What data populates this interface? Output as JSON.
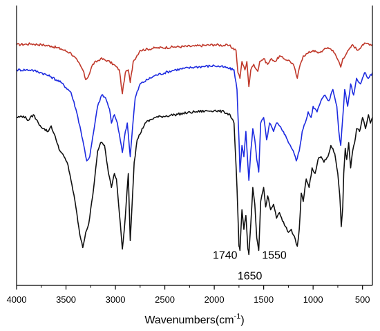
{
  "chart_data": {
    "type": "line",
    "title": "",
    "xlabel_main": "Wavenumbers(cm",
    "xlabel_sup": "-1",
    "xlabel_close": ")",
    "ylabel": "",
    "xlim": [
      4000,
      400
    ],
    "ylim": [
      0,
      100
    ],
    "x_ticks": [
      4000,
      3500,
      3000,
      2500,
      2000,
      1500,
      1000,
      500
    ],
    "x_tick_labels": [
      "4000",
      "3500",
      "3000",
      "2500",
      "2000",
      "1500",
      "1000",
      "500"
    ],
    "y_axis_visible": false,
    "grid": false,
    "legend": "none",
    "series": [
      {
        "color": "#c0392b",
        "points": [
          [
            4000,
            86
          ],
          [
            3850,
            86.3
          ],
          [
            3750,
            86
          ],
          [
            3650,
            85.5
          ],
          [
            3550,
            84.5
          ],
          [
            3450,
            83
          ],
          [
            3380,
            80
          ],
          [
            3330,
            77
          ],
          [
            3300,
            73.5
          ],
          [
            3270,
            75
          ],
          [
            3230,
            79
          ],
          [
            3150,
            81
          ],
          [
            3080,
            80.3
          ],
          [
            3020,
            79
          ],
          [
            2960,
            77
          ],
          [
            2930,
            68.5
          ],
          [
            2900,
            76
          ],
          [
            2870,
            77
          ],
          [
            2850,
            72.5
          ],
          [
            2820,
            80
          ],
          [
            2750,
            84
          ],
          [
            2600,
            84.8
          ],
          [
            2400,
            85.2
          ],
          [
            2200,
            85.5
          ],
          [
            2000,
            86
          ],
          [
            1850,
            85.7
          ],
          [
            1780,
            84
          ],
          [
            1760,
            76
          ],
          [
            1740,
            74
          ],
          [
            1720,
            80
          ],
          [
            1690,
            77
          ],
          [
            1670,
            80
          ],
          [
            1650,
            71
          ],
          [
            1630,
            77
          ],
          [
            1600,
            79
          ],
          [
            1560,
            76.5
          ],
          [
            1540,
            80
          ],
          [
            1500,
            81
          ],
          [
            1460,
            79
          ],
          [
            1420,
            81
          ],
          [
            1380,
            80
          ],
          [
            1340,
            82
          ],
          [
            1300,
            81
          ],
          [
            1250,
            80.5
          ],
          [
            1200,
            79
          ],
          [
            1160,
            74
          ],
          [
            1130,
            79
          ],
          [
            1100,
            82
          ],
          [
            1050,
            83
          ],
          [
            1000,
            84
          ],
          [
            950,
            83
          ],
          [
            900,
            84
          ],
          [
            850,
            85
          ],
          [
            800,
            84
          ],
          [
            740,
            80
          ],
          [
            720,
            78
          ],
          [
            700,
            81
          ],
          [
            660,
            83
          ],
          [
            600,
            86
          ],
          [
            550,
            84
          ],
          [
            500,
            86
          ],
          [
            450,
            86.5
          ],
          [
            400,
            86
          ]
        ]
      },
      {
        "color": "#1d2be0",
        "points": [
          [
            4000,
            77
          ],
          [
            3850,
            77
          ],
          [
            3750,
            76
          ],
          [
            3650,
            74.5
          ],
          [
            3550,
            72.5
          ],
          [
            3450,
            69
          ],
          [
            3400,
            63
          ],
          [
            3360,
            57
          ],
          [
            3320,
            50
          ],
          [
            3290,
            44.5
          ],
          [
            3260,
            46
          ],
          [
            3220,
            55
          ],
          [
            3180,
            64
          ],
          [
            3140,
            68
          ],
          [
            3100,
            67
          ],
          [
            3060,
            63
          ],
          [
            3040,
            58
          ],
          [
            3010,
            61
          ],
          [
            2980,
            58
          ],
          [
            2960,
            54
          ],
          [
            2930,
            47.5
          ],
          [
            2900,
            55
          ],
          [
            2880,
            58
          ],
          [
            2850,
            46
          ],
          [
            2830,
            55
          ],
          [
            2800,
            67
          ],
          [
            2750,
            72
          ],
          [
            2600,
            75
          ],
          [
            2400,
            77
          ],
          [
            2200,
            78
          ],
          [
            2000,
            78.5
          ],
          [
            1900,
            78
          ],
          [
            1800,
            77
          ],
          [
            1770,
            70
          ],
          [
            1750,
            52
          ],
          [
            1740,
            40.5
          ],
          [
            1720,
            50
          ],
          [
            1700,
            46
          ],
          [
            1680,
            55
          ],
          [
            1650,
            37.5
          ],
          [
            1630,
            48
          ],
          [
            1610,
            56
          ],
          [
            1590,
            52
          ],
          [
            1570,
            45
          ],
          [
            1550,
            40.5
          ],
          [
            1530,
            58
          ],
          [
            1500,
            60
          ],
          [
            1470,
            52
          ],
          [
            1440,
            58
          ],
          [
            1400,
            55
          ],
          [
            1370,
            58
          ],
          [
            1340,
            57
          ],
          [
            1300,
            55
          ],
          [
            1260,
            52
          ],
          [
            1230,
            50
          ],
          [
            1200,
            48
          ],
          [
            1170,
            44.5
          ],
          [
            1140,
            48
          ],
          [
            1110,
            55
          ],
          [
            1080,
            58
          ],
          [
            1050,
            62
          ],
          [
            1020,
            60
          ],
          [
            1000,
            64
          ],
          [
            960,
            62
          ],
          [
            920,
            66
          ],
          [
            880,
            68
          ],
          [
            840,
            66
          ],
          [
            800,
            70
          ],
          [
            760,
            64
          ],
          [
            740,
            55
          ],
          [
            720,
            50
          ],
          [
            700,
            60
          ],
          [
            680,
            70
          ],
          [
            650,
            64
          ],
          [
            620,
            72
          ],
          [
            590,
            68
          ],
          [
            560,
            74
          ],
          [
            520,
            72
          ],
          [
            480,
            76
          ],
          [
            440,
            74
          ],
          [
            400,
            76
          ]
        ]
      },
      {
        "color": "#111111",
        "points": [
          [
            4000,
            60
          ],
          [
            3930,
            60.5
          ],
          [
            3880,
            59
          ],
          [
            3830,
            61
          ],
          [
            3780,
            58
          ],
          [
            3730,
            56
          ],
          [
            3680,
            55
          ],
          [
            3650,
            57
          ],
          [
            3600,
            52
          ],
          [
            3560,
            48
          ],
          [
            3520,
            46
          ],
          [
            3480,
            43
          ],
          [
            3440,
            36
          ],
          [
            3400,
            28
          ],
          [
            3360,
            18
          ],
          [
            3330,
            13.5
          ],
          [
            3300,
            19
          ],
          [
            3270,
            22
          ],
          [
            3230,
            32
          ],
          [
            3180,
            48
          ],
          [
            3150,
            51
          ],
          [
            3110,
            50
          ],
          [
            3070,
            40
          ],
          [
            3040,
            35
          ],
          [
            3010,
            40
          ],
          [
            2990,
            38
          ],
          [
            2970,
            30
          ],
          [
            2950,
            22
          ],
          [
            2930,
            13
          ],
          [
            2910,
            20
          ],
          [
            2890,
            30
          ],
          [
            2870,
            40
          ],
          [
            2850,
            16
          ],
          [
            2830,
            30
          ],
          [
            2810,
            44
          ],
          [
            2780,
            52
          ],
          [
            2700,
            58
          ],
          [
            2600,
            60
          ],
          [
            2400,
            61
          ],
          [
            2200,
            62
          ],
          [
            2000,
            62.5
          ],
          [
            1900,
            62
          ],
          [
            1840,
            61
          ],
          [
            1800,
            58
          ],
          [
            1770,
            35
          ],
          [
            1750,
            14
          ],
          [
            1740,
            12.5
          ],
          [
            1720,
            27
          ],
          [
            1700,
            20
          ],
          [
            1680,
            25
          ],
          [
            1660,
            13
          ],
          [
            1650,
            11
          ],
          [
            1630,
            22
          ],
          [
            1610,
            35
          ],
          [
            1590,
            29
          ],
          [
            1570,
            17
          ],
          [
            1550,
            12.5
          ],
          [
            1530,
            30
          ],
          [
            1500,
            35
          ],
          [
            1480,
            28
          ],
          [
            1460,
            32
          ],
          [
            1430,
            27
          ],
          [
            1400,
            29
          ],
          [
            1370,
            24
          ],
          [
            1340,
            26
          ],
          [
            1310,
            23
          ],
          [
            1280,
            21
          ],
          [
            1250,
            19
          ],
          [
            1220,
            20
          ],
          [
            1200,
            18
          ],
          [
            1180,
            16.5
          ],
          [
            1160,
            14
          ],
          [
            1140,
            20
          ],
          [
            1120,
            33
          ],
          [
            1100,
            30
          ],
          [
            1070,
            38
          ],
          [
            1040,
            35
          ],
          [
            1010,
            42
          ],
          [
            980,
            40
          ],
          [
            950,
            45
          ],
          [
            920,
            46
          ],
          [
            890,
            44
          ],
          [
            850,
            46
          ],
          [
            820,
            50
          ],
          [
            780,
            47
          ],
          [
            750,
            40
          ],
          [
            730,
            32
          ],
          [
            715,
            21
          ],
          [
            700,
            28
          ],
          [
            690,
            40
          ],
          [
            675,
            49
          ],
          [
            660,
            45
          ],
          [
            640,
            51
          ],
          [
            620,
            42
          ],
          [
            600,
            48
          ],
          [
            580,
            51
          ],
          [
            560,
            56
          ],
          [
            530,
            55
          ],
          [
            500,
            60
          ],
          [
            470,
            56
          ],
          [
            440,
            61
          ],
          [
            420,
            58
          ],
          [
            400,
            60
          ]
        ]
      }
    ],
    "annotations": [
      {
        "text": "1740",
        "x": 1745,
        "y": 12.5,
        "anchor": "end",
        "dy": 12
      },
      {
        "text": "1550",
        "x": 1538,
        "y": 12.5,
        "anchor": "start",
        "dy": 12
      },
      {
        "text": "1650",
        "x": 1640,
        "y": 11,
        "anchor": "middle",
        "dy": 36
      }
    ]
  }
}
